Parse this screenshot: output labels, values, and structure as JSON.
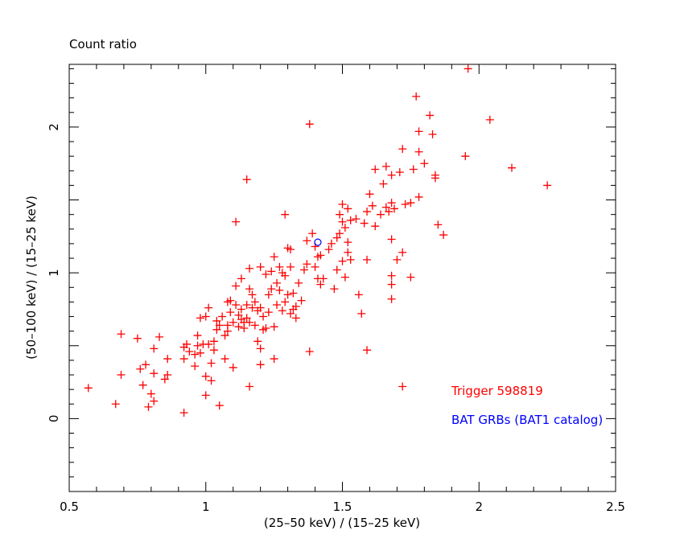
{
  "chart_data": {
    "type": "scatter",
    "title": "Count ratio",
    "xlabel": "(25–50 keV) / (15–25 keV)",
    "ylabel": "(50–100 keV) / (15–25 keV)",
    "xlim": [
      0.5,
      2.5
    ],
    "ylim": [
      -0.5,
      2.43
    ],
    "xticks": [
      0.5,
      1,
      1.5,
      2,
      2.5
    ],
    "xtick_labels": [
      "0.5",
      "1",
      "1.5",
      "2",
      "2.5"
    ],
    "yticks": [
      0,
      1,
      2
    ],
    "ytick_labels": [
      "0",
      "1",
      "2"
    ],
    "grid": false,
    "legend_placement": "bottom-right",
    "series": [
      {
        "name": "Trigger 598819",
        "marker": "plus",
        "color": "#ff0000",
        "points": [
          [
            0.57,
            0.21
          ],
          [
            0.67,
            0.1
          ],
          [
            0.69,
            0.58
          ],
          [
            0.69,
            0.3
          ],
          [
            0.75,
            0.55
          ],
          [
            0.76,
            0.34
          ],
          [
            0.77,
            0.23
          ],
          [
            0.78,
            0.37
          ],
          [
            0.79,
            0.08
          ],
          [
            0.8,
            0.17
          ],
          [
            0.81,
            0.12
          ],
          [
            0.81,
            0.48
          ],
          [
            0.81,
            0.31
          ],
          [
            0.83,
            0.56
          ],
          [
            0.85,
            0.27
          ],
          [
            0.86,
            0.41
          ],
          [
            0.86,
            0.3
          ],
          [
            0.92,
            0.04
          ],
          [
            0.92,
            0.49
          ],
          [
            0.92,
            0.41
          ],
          [
            0.93,
            0.51
          ],
          [
            0.94,
            0.46
          ],
          [
            0.96,
            0.36
          ],
          [
            0.96,
            0.44
          ],
          [
            0.97,
            0.57
          ],
          [
            0.97,
            0.5
          ],
          [
            0.98,
            0.45
          ],
          [
            0.98,
            0.69
          ],
          [
            0.99,
            0.51
          ],
          [
            1.0,
            0.29
          ],
          [
            1.0,
            0.7
          ],
          [
            1.0,
            0.16
          ],
          [
            1.01,
            0.76
          ],
          [
            1.01,
            0.51
          ],
          [
            1.02,
            0.38
          ],
          [
            1.02,
            0.26
          ],
          [
            1.03,
            0.53
          ],
          [
            1.03,
            0.47
          ],
          [
            1.04,
            0.67
          ],
          [
            1.04,
            0.61
          ],
          [
            1.05,
            0.09
          ],
          [
            1.05,
            0.64
          ],
          [
            1.06,
            0.7
          ],
          [
            1.07,
            0.57
          ],
          [
            1.07,
            0.41
          ],
          [
            1.08,
            0.6
          ],
          [
            1.08,
            0.8
          ],
          [
            1.08,
            0.64
          ],
          [
            1.09,
            0.73
          ],
          [
            1.09,
            0.81
          ],
          [
            1.1,
            0.35
          ],
          [
            1.1,
            0.66
          ],
          [
            1.11,
            1.35
          ],
          [
            1.11,
            0.78
          ],
          [
            1.11,
            0.91
          ],
          [
            1.12,
            0.71
          ],
          [
            1.12,
            0.63
          ],
          [
            1.13,
            0.96
          ],
          [
            1.13,
            0.75
          ],
          [
            1.13,
            0.68
          ],
          [
            1.14,
            0.62
          ],
          [
            1.14,
            0.66
          ],
          [
            1.15,
            1.64
          ],
          [
            1.15,
            0.69
          ],
          [
            1.15,
            0.78
          ],
          [
            1.16,
            0.22
          ],
          [
            1.16,
            1.03
          ],
          [
            1.16,
            0.66
          ],
          [
            1.16,
            0.89
          ],
          [
            1.17,
            0.85
          ],
          [
            1.17,
            0.76
          ],
          [
            1.18,
            0.64
          ],
          [
            1.18,
            0.8
          ],
          [
            1.19,
            0.53
          ],
          [
            1.19,
            0.74
          ],
          [
            1.2,
            0.48
          ],
          [
            1.2,
            1.04
          ],
          [
            1.2,
            0.76
          ],
          [
            1.2,
            0.37
          ],
          [
            1.21,
            0.7
          ],
          [
            1.21,
            0.61
          ],
          [
            1.22,
            0.99
          ],
          [
            1.22,
            0.62
          ],
          [
            1.23,
            0.85
          ],
          [
            1.23,
            0.73
          ],
          [
            1.24,
            0.89
          ],
          [
            1.24,
            1.01
          ],
          [
            1.25,
            1.11
          ],
          [
            1.25,
            0.41
          ],
          [
            1.25,
            0.63
          ],
          [
            1.26,
            0.78
          ],
          [
            1.26,
            0.93
          ],
          [
            1.27,
            1.04
          ],
          [
            1.27,
            0.88
          ],
          [
            1.28,
            1.0
          ],
          [
            1.28,
            0.74
          ],
          [
            1.29,
            1.4
          ],
          [
            1.29,
            0.8
          ],
          [
            1.29,
            0.98
          ],
          [
            1.3,
            1.17
          ],
          [
            1.3,
            0.85
          ],
          [
            1.31,
            1.16
          ],
          [
            1.31,
            0.72
          ],
          [
            1.31,
            1.04
          ],
          [
            1.32,
            0.75
          ],
          [
            1.32,
            0.86
          ],
          [
            1.33,
            0.69
          ],
          [
            1.33,
            0.77
          ],
          [
            1.34,
            0.93
          ],
          [
            1.35,
            0.81
          ],
          [
            1.36,
            1.02
          ],
          [
            1.37,
            1.22
          ],
          [
            1.37,
            1.06
          ],
          [
            1.38,
            2.02
          ],
          [
            1.38,
            0.46
          ],
          [
            1.39,
            1.27
          ],
          [
            1.4,
            1.04
          ],
          [
            1.4,
            1.18
          ],
          [
            1.41,
            1.11
          ],
          [
            1.41,
            0.96
          ],
          [
            1.42,
            1.12
          ],
          [
            1.42,
            0.92
          ],
          [
            1.43,
            0.96
          ],
          [
            1.45,
            1.16
          ],
          [
            1.46,
            1.2
          ],
          [
            1.47,
            0.89
          ],
          [
            1.48,
            1.24
          ],
          [
            1.48,
            1.02
          ],
          [
            1.49,
            1.4
          ],
          [
            1.49,
            1.27
          ],
          [
            1.5,
            1.47
          ],
          [
            1.5,
            1.35
          ],
          [
            1.5,
            1.08
          ],
          [
            1.51,
            1.31
          ],
          [
            1.51,
            0.97
          ],
          [
            1.52,
            1.44
          ],
          [
            1.52,
            1.21
          ],
          [
            1.52,
            1.14
          ],
          [
            1.53,
            1.36
          ],
          [
            1.53,
            1.09
          ],
          [
            1.55,
            1.37
          ],
          [
            1.56,
            0.85
          ],
          [
            1.57,
            0.72
          ],
          [
            1.58,
            1.34
          ],
          [
            1.59,
            1.42
          ],
          [
            1.59,
            1.09
          ],
          [
            1.59,
            0.47
          ],
          [
            1.6,
            1.54
          ],
          [
            1.61,
            1.46
          ],
          [
            1.62,
            1.71
          ],
          [
            1.62,
            1.32
          ],
          [
            1.64,
            1.4
          ],
          [
            1.65,
            1.61
          ],
          [
            1.66,
            1.73
          ],
          [
            1.66,
            1.45
          ],
          [
            1.67,
            1.42
          ],
          [
            1.68,
            1.67
          ],
          [
            1.68,
            1.48
          ],
          [
            1.68,
            1.23
          ],
          [
            1.68,
            0.98
          ],
          [
            1.68,
            0.92
          ],
          [
            1.68,
            0.82
          ],
          [
            1.69,
            1.44
          ],
          [
            1.7,
            1.09
          ],
          [
            1.71,
            1.69
          ],
          [
            1.72,
            1.85
          ],
          [
            1.72,
            1.14
          ],
          [
            1.72,
            0.22
          ],
          [
            1.73,
            1.47
          ],
          [
            1.75,
            1.48
          ],
          [
            1.75,
            0.97
          ],
          [
            1.76,
            1.71
          ],
          [
            1.77,
            2.21
          ],
          [
            1.78,
            1.83
          ],
          [
            1.78,
            1.97
          ],
          [
            1.78,
            1.52
          ],
          [
            1.8,
            1.75
          ],
          [
            1.82,
            2.08
          ],
          [
            1.83,
            1.95
          ],
          [
            1.84,
            1.67
          ],
          [
            1.84,
            1.65
          ],
          [
            1.85,
            1.33
          ],
          [
            1.87,
            1.26
          ],
          [
            1.95,
            1.8
          ],
          [
            1.96,
            2.4
          ],
          [
            2.04,
            2.05
          ],
          [
            2.12,
            1.72
          ],
          [
            2.25,
            1.6
          ]
        ]
      },
      {
        "name": "BAT GRBs (BAT1 catalog)",
        "marker": "circle",
        "color": "#0000ff",
        "points": [
          [
            1.41,
            1.21
          ]
        ]
      }
    ]
  }
}
